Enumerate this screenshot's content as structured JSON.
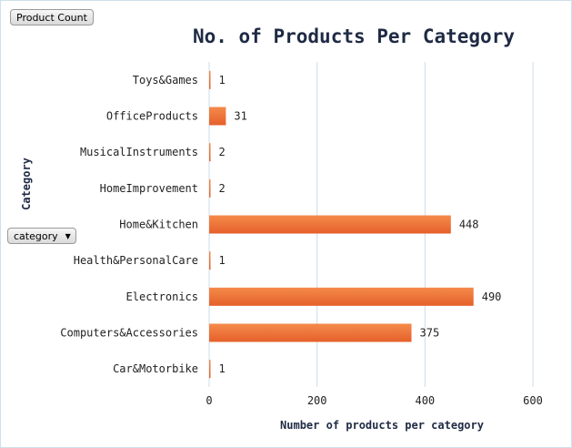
{
  "filters": {
    "value_field": "Product Count",
    "axis_field": "category",
    "axis_field_arrow": "▼"
  },
  "colors": {
    "bar_top": "#f58a4b",
    "bar_bottom": "#e5602a",
    "grid": "#cddde9",
    "text": "#222222"
  },
  "chart_data": {
    "type": "bar",
    "orientation": "horizontal",
    "title": "No. of Products Per Category",
    "xlabel": "Number of products per category",
    "ylabel": "Category",
    "categories": [
      "Toys&Games",
      "OfficeProducts",
      "MusicalInstruments",
      "HomeImprovement",
      "Home&Kitchen",
      "Health&PersonalCare",
      "Electronics",
      "Computers&Accessories",
      "Car&Motorbike"
    ],
    "values": [
      1,
      31,
      2,
      2,
      448,
      1,
      490,
      375,
      1
    ],
    "xlim": [
      0,
      600
    ],
    "xticks": [
      0,
      200,
      400,
      600
    ],
    "grid": true,
    "legend": "none"
  }
}
